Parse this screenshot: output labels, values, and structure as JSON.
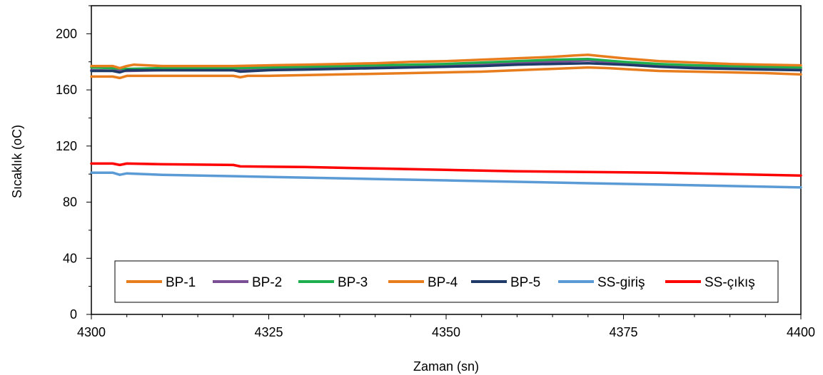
{
  "chart_data": {
    "type": "line",
    "title": "",
    "xlabel": "Zaman (sn)",
    "ylabel": "Sıcaklık (oC)",
    "xlim": [
      4300,
      4400
    ],
    "ylim": [
      0,
      220
    ],
    "x_ticks": [
      4300,
      4325,
      4350,
      4375,
      4400
    ],
    "y_ticks": [
      0,
      40,
      80,
      120,
      160,
      200
    ],
    "grid": false,
    "legend_position": "bottom-inside",
    "series": [
      {
        "name": "BP-1",
        "color": "#E87D1E",
        "x": [
          4300,
          4303,
          4304,
          4305,
          4310,
          4320,
          4321,
          4322,
          4325,
          4330,
          4335,
          4340,
          4345,
          4350,
          4355,
          4360,
          4365,
          4370,
          4373,
          4378,
          4380,
          4385,
          4390,
          4395,
          4400
        ],
        "y": [
          169.5,
          169.5,
          168.5,
          170,
          170,
          170,
          169,
          170,
          170,
          170.5,
          171,
          171.5,
          172,
          172.5,
          173,
          174,
          175,
          176,
          175.5,
          174,
          173.5,
          173,
          172.5,
          172,
          171
        ]
      },
      {
        "name": "BP-2",
        "color": "#7A4F96",
        "x": [
          4300,
          4305,
          4310,
          4320,
          4325,
          4330,
          4335,
          4340,
          4345,
          4350,
          4355,
          4360,
          4365,
          4370,
          4375,
          4380,
          4385,
          4390,
          4395,
          4400
        ],
        "y": [
          174,
          173.5,
          174,
          174,
          174.5,
          175,
          175.5,
          176,
          176.5,
          177,
          178,
          179,
          180,
          181,
          179,
          178,
          177,
          176,
          175.5,
          175
        ]
      },
      {
        "name": "BP-3",
        "color": "#1FAE4E",
        "x": [
          4300,
          4303,
          4305,
          4310,
          4320,
          4325,
          4330,
          4335,
          4340,
          4345,
          4350,
          4355,
          4360,
          4365,
          4370,
          4375,
          4380,
          4385,
          4390,
          4395,
          4400
        ],
        "y": [
          176,
          175.5,
          175,
          175.5,
          175.5,
          176,
          176.5,
          177,
          177.5,
          178,
          178.5,
          179.5,
          180.5,
          181.5,
          182,
          180,
          178.5,
          177.5,
          177,
          176.5,
          176
        ]
      },
      {
        "name": "BP-4",
        "color": "#E87D1E",
        "x": [
          4300,
          4303,
          4304,
          4305,
          4306,
          4310,
          4320,
          4325,
          4330,
          4335,
          4340,
          4345,
          4350,
          4355,
          4360,
          4365,
          4368,
          4370,
          4372,
          4375,
          4380,
          4385,
          4390,
          4395,
          4400
        ],
        "y": [
          177,
          177,
          175.5,
          177,
          178,
          177,
          177,
          177.5,
          178,
          178.5,
          179,
          180,
          180.5,
          181.5,
          182.5,
          183.5,
          184.5,
          185,
          184,
          182.5,
          180.5,
          179.5,
          178.5,
          178,
          177.5
        ]
      },
      {
        "name": "BP-5",
        "color": "#1F3A68",
        "x": [
          4300,
          4303,
          4304,
          4305,
          4310,
          4320,
          4321,
          4325,
          4330,
          4335,
          4340,
          4345,
          4350,
          4355,
          4360,
          4365,
          4370,
          4375,
          4380,
          4385,
          4390,
          4395,
          4400
        ],
        "y": [
          173.5,
          173.5,
          172.5,
          174,
          174,
          174,
          173,
          174,
          174.5,
          175,
          175.5,
          176,
          176.5,
          177,
          178,
          178.5,
          179,
          178,
          176.5,
          175.5,
          175,
          174.5,
          174
        ]
      },
      {
        "name": "SS-giriş",
        "color": "#5B9BD5",
        "x": [
          4300,
          4303,
          4304,
          4305,
          4310,
          4320,
          4330,
          4340,
          4350,
          4360,
          4370,
          4380,
          4390,
          4400
        ],
        "y": [
          101,
          101,
          99.5,
          100.5,
          99.5,
          98.5,
          97.5,
          96.5,
          95.5,
          94.5,
          93.5,
          92.5,
          91.5,
          90.5
        ]
      },
      {
        "name": "SS-çıkış",
        "color": "#FF0000",
        "x": [
          4300,
          4303,
          4304,
          4305,
          4310,
          4320,
          4321,
          4330,
          4340,
          4350,
          4360,
          4370,
          4380,
          4390,
          4400
        ],
        "y": [
          107.5,
          107.5,
          106.5,
          107.5,
          107,
          106.5,
          105.5,
          105,
          104,
          103,
          102,
          101.5,
          101,
          100,
          99
        ]
      }
    ]
  }
}
